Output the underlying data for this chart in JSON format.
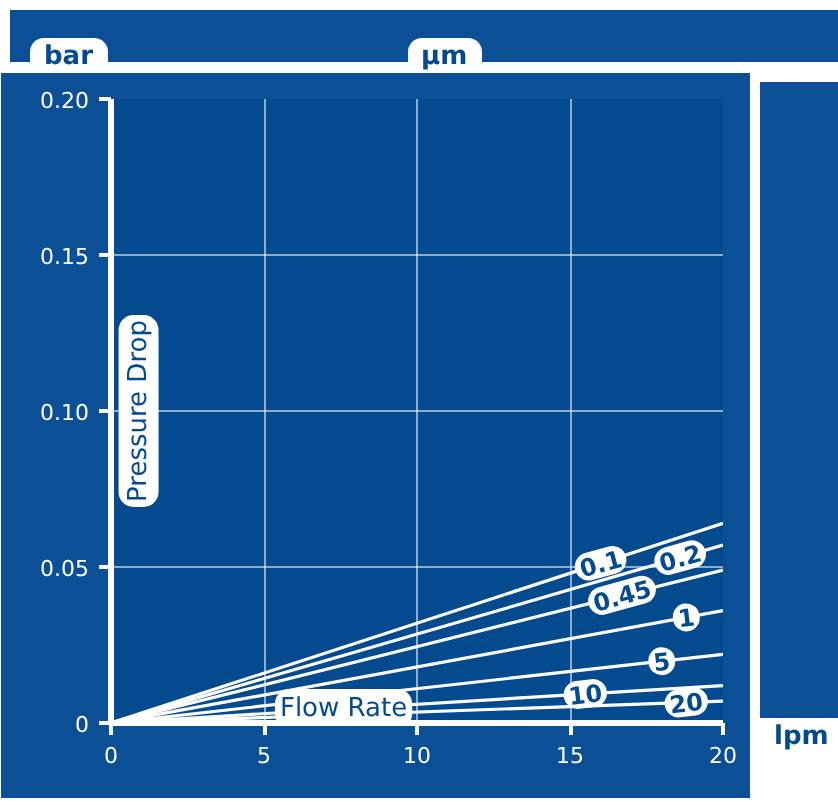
{
  "chart_data": {
    "type": "line",
    "xlabel": "Flow Rate",
    "ylabel": "Pressure Drop",
    "legend_title": "µm",
    "annotations": [
      "bar",
      "lpm"
    ],
    "x": [
      0,
      20
    ],
    "series": [
      {
        "name": "0.1",
        "color": "#ffffff",
        "values": [
          0,
          0.064
        ]
      },
      {
        "name": "0.2",
        "color": "#ffffff",
        "values": [
          0,
          0.057
        ]
      },
      {
        "name": "0.45",
        "color": "#ffffff",
        "values": [
          0,
          0.049
        ]
      },
      {
        "name": "1",
        "color": "#ffffff",
        "values": [
          0,
          0.036
        ]
      },
      {
        "name": "5",
        "color": "#ffffff",
        "values": [
          0,
          0.022
        ]
      },
      {
        "name": "10",
        "color": "#ffffff",
        "values": [
          0,
          0.012
        ]
      },
      {
        "name": "20",
        "color": "#ffffff",
        "values": [
          0,
          0.007
        ]
      }
    ],
    "xlim": [
      0,
      20
    ],
    "ylim": [
      0,
      0.2
    ],
    "xticks": [
      0,
      5,
      10,
      15,
      20
    ],
    "yticks": [
      {
        "value": 0,
        "label": "0"
      },
      0.05,
      {
        "value": 0.1,
        "label": "0.10"
      },
      0.15,
      {
        "value": 0.2,
        "label": "0.20"
      }
    ],
    "grid": true,
    "legend": "right",
    "marker": "none",
    "line_style": "solid"
  }
}
